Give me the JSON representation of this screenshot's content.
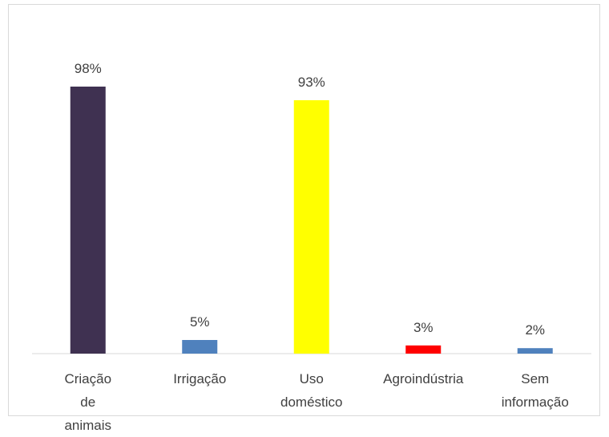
{
  "chart_data": {
    "type": "bar",
    "categories": [
      "Criação de animais",
      "Irrigação",
      "Uso doméstico",
      "Agroindústria",
      "Sem informação"
    ],
    "values": [
      98,
      5,
      93,
      3,
      2
    ],
    "value_labels": [
      "98%",
      "5%",
      "93%",
      "3%",
      "2%"
    ],
    "colors": [
      "#3f3151",
      "#4f81bd",
      "#ffff00",
      "#ff0000",
      "#4f81bd"
    ]
  }
}
